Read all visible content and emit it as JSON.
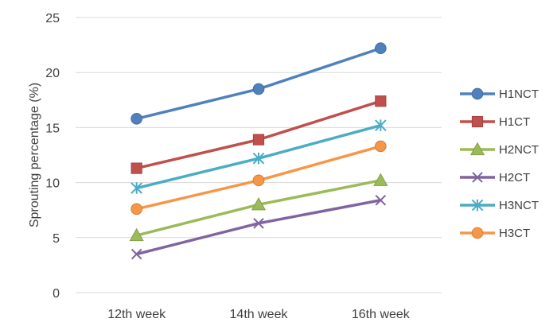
{
  "chart_data": {
    "type": "line",
    "title": "",
    "xlabel": "",
    "ylabel": "Sprouting percentage (%)",
    "categories": [
      "12th week",
      "14th week",
      "16th week"
    ],
    "ylim": [
      0,
      25
    ],
    "yticks": [
      0,
      5,
      10,
      15,
      20,
      25
    ],
    "grid": "horizontal",
    "legend_position": "right",
    "series": [
      {
        "name": "H1NCT",
        "values": [
          15.8,
          18.5,
          22.2
        ],
        "color": "#4F81BD",
        "marker": "circle"
      },
      {
        "name": "H1CT",
        "values": [
          11.3,
          13.9,
          17.4
        ],
        "color": "#C0504D",
        "marker": "square"
      },
      {
        "name": "H2NCT",
        "values": [
          5.2,
          8.0,
          10.2
        ],
        "color": "#9BBB59",
        "marker": "triangle"
      },
      {
        "name": "H2CT",
        "values": [
          3.5,
          6.3,
          8.4
        ],
        "color": "#8064A2",
        "marker": "x"
      },
      {
        "name": "H3NCT",
        "values": [
          9.5,
          12.2,
          15.2
        ],
        "color": "#4BACC6",
        "marker": "star"
      },
      {
        "name": "H3CT",
        "values": [
          7.6,
          10.2,
          13.3
        ],
        "color": "#F79646",
        "marker": "circle"
      }
    ]
  }
}
